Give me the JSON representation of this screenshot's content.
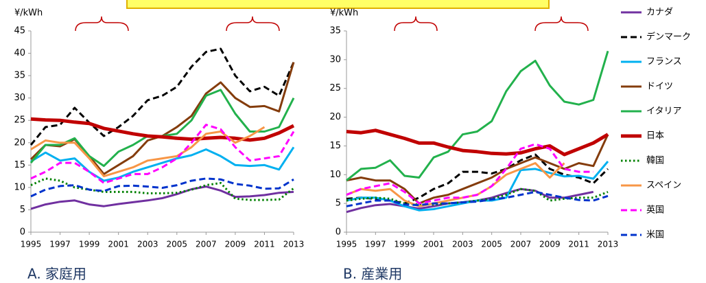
{
  "chart_data": [
    {
      "type": "line",
      "y_label": "¥/kWh",
      "caption": "A. 家庭用",
      "x": [
        1995,
        1996,
        1997,
        1998,
        1999,
        2000,
        2001,
        2002,
        2003,
        2004,
        2005,
        2006,
        2007,
        2008,
        2009,
        2010,
        2011,
        2012,
        2013
      ],
      "xlim": [
        1995,
        2013
      ],
      "xticks": [
        1995,
        1997,
        1999,
        2001,
        2003,
        2005,
        2007,
        2009,
        2011,
        2013
      ],
      "ylim": [
        0,
        45
      ],
      "yticks": [
        0,
        5,
        10,
        15,
        20,
        25,
        30,
        35,
        40,
        45
      ],
      "series": [
        {
          "name": "カナダ",
          "color": "#7030a0",
          "dash": "solid",
          "line_width": 3,
          "values": [
            5.2,
            6.2,
            6.8,
            7.1,
            6.2,
            5.8,
            6.3,
            6.7,
            7.1,
            7.6,
            8.5,
            9.6,
            10.2,
            9.3,
            7.9,
            8.0,
            8.3,
            8.8,
            9.0
          ]
        },
        {
          "name": "デンマーク",
          "color": "#000000",
          "dash": "dashed",
          "line_width": 3,
          "values": [
            19.5,
            23.5,
            24,
            27.8,
            24.5,
            21.5,
            23.5,
            26,
            29.5,
            30.5,
            32.5,
            37,
            40.3,
            41,
            35,
            31.5,
            32.5,
            30.5,
            38
          ]
        },
        {
          "name": "フランス",
          "color": "#00b0f0",
          "dash": "solid",
          "line_width": 3,
          "values": [
            15.8,
            17.8,
            16,
            16.5,
            13.5,
            11.5,
            12.2,
            13.5,
            14.5,
            15.5,
            16.5,
            17.2,
            18.5,
            17,
            15,
            14.8,
            15,
            14,
            19
          ]
        },
        {
          "name": "ドイツ",
          "color": "#843c0c",
          "dash": "solid",
          "line_width": 3,
          "values": [
            16.3,
            19.5,
            19.2,
            20.8,
            17,
            13,
            15,
            17,
            20.5,
            21.5,
            23.5,
            26,
            31,
            33.5,
            30,
            28,
            28.2,
            27,
            38
          ]
        },
        {
          "name": "イタリア",
          "color": "#22b14c",
          "dash": "solid",
          "line_width": 3,
          "values": [
            15.5,
            19.5,
            19.5,
            21,
            17,
            14.8,
            18,
            19.5,
            21.5,
            21.5,
            22,
            25,
            30.5,
            31.8,
            26.5,
            22.5,
            22.5,
            23.5,
            30
          ]
        },
        {
          "name": "日本",
          "color": "#c00000",
          "dash": "solid",
          "line_width": 5,
          "values": [
            25.3,
            25.1,
            25,
            24.6,
            24.3,
            23.2,
            22.6,
            22,
            21.5,
            21.3,
            21,
            20.8,
            21,
            21.2,
            21,
            20.6,
            21,
            22.2,
            23.8
          ]
        },
        {
          "name": "韓国",
          "color": "#008000",
          "dash": "dotted",
          "line_width": 3,
          "values": [
            10.5,
            12,
            11.5,
            10,
            9.5,
            9,
            9,
            9,
            8.7,
            8.7,
            8.8,
            9.5,
            10.5,
            11,
            7.5,
            7.2,
            7.2,
            7.3,
            9.8
          ]
        },
        {
          "name": "スペイン",
          "color": "#f79646",
          "dash": "solid",
          "line_width": 3,
          "values": [
            18.5,
            20.5,
            20,
            20,
            16.5,
            12.5,
            13.5,
            14.5,
            16,
            16.5,
            17,
            19,
            22,
            22.5,
            20,
            21.5,
            23.5,
            null,
            null
          ]
        },
        {
          "name": "英国",
          "color": "#ff00ff",
          "dash": "dashed",
          "line_width": 3,
          "values": [
            12,
            13.5,
            15.5,
            15.5,
            13.5,
            11,
            12,
            13,
            13,
            14.5,
            16.5,
            20,
            24,
            23,
            19,
            16,
            16.5,
            17,
            22.5
          ]
        },
        {
          "name": "米国",
          "color": "#0033cc",
          "dash": "dashed",
          "line_width": 3,
          "values": [
            8,
            9.5,
            10.3,
            10.5,
            9.5,
            9.2,
            10.3,
            10.4,
            10.2,
            9.9,
            10.5,
            11.5,
            12,
            11.8,
            10.8,
            10.4,
            9.7,
            9.8,
            11.8
          ]
        }
      ]
    },
    {
      "type": "line",
      "y_label": "¥/kWh",
      "caption": "B. 産業用",
      "legend": "right",
      "x": [
        1995,
        1996,
        1997,
        1998,
        1999,
        2000,
        2001,
        2002,
        2003,
        2004,
        2005,
        2006,
        2007,
        2008,
        2009,
        2010,
        2011,
        2012,
        2013
      ],
      "xlim": [
        1995,
        2013
      ],
      "xticks": [
        1995,
        1997,
        1999,
        2001,
        2003,
        2005,
        2007,
        2009,
        2011,
        2013
      ],
      "ylim": [
        0,
        35
      ],
      "yticks": [
        0,
        5,
        10,
        15,
        20,
        25,
        30,
        35
      ],
      "series": [
        {
          "name": "カナダ",
          "color": "#7030a0",
          "dash": "solid",
          "line_width": 3,
          "values": [
            3.5,
            4.2,
            4.7,
            4.9,
            4.5,
            4.1,
            4.5,
            5,
            5.2,
            5.5,
            6,
            6.8,
            7.5,
            7.2,
            6,
            6,
            6.5,
            7,
            null
          ]
        },
        {
          "name": "デンマーク",
          "color": "#000000",
          "dash": "dashed",
          "line_width": 3,
          "values": [
            5.8,
            6,
            5.8,
            5.5,
            5,
            6,
            7.5,
            8.5,
            10.5,
            10.5,
            10.2,
            11,
            12.5,
            13.5,
            11,
            10,
            9.5,
            8.5,
            11
          ]
        },
        {
          "name": "フランス",
          "color": "#00b0f0",
          "dash": "solid",
          "line_width": 3,
          "values": [
            5.5,
            6,
            6,
            5.5,
            4.5,
            3.8,
            4,
            4.5,
            5,
            5.5,
            5.5,
            6,
            10.8,
            11,
            10.3,
            9.7,
            9.8,
            9.3,
            12.3
          ]
        },
        {
          "name": "ドイツ",
          "color": "#843c0c",
          "dash": "solid",
          "line_width": 3,
          "values": [
            9,
            9.5,
            9,
            9,
            7.5,
            5,
            6,
            6.5,
            7.5,
            8.5,
            9.5,
            11,
            12,
            13,
            12,
            11,
            12,
            11.5,
            17
          ]
        },
        {
          "name": "イタリア",
          "color": "#22b14c",
          "dash": "solid",
          "line_width": 3,
          "values": [
            9,
            11,
            11.2,
            12.5,
            9.8,
            9.5,
            13,
            14,
            17,
            17.5,
            19.3,
            24.5,
            28,
            29.8,
            25.5,
            22.7,
            22.2,
            23,
            31.5
          ]
        },
        {
          "name": "日本",
          "color": "#c00000",
          "dash": "solid",
          "line_width": 5,
          "values": [
            17.5,
            17.3,
            17.7,
            17,
            16.3,
            15.5,
            15.5,
            14.8,
            14.2,
            14,
            13.7,
            13.6,
            13.8,
            14.5,
            15,
            13.5,
            14.5,
            15.5,
            17
          ]
        },
        {
          "name": "韓国",
          "color": "#008000",
          "dash": "dotted",
          "line_width": 3,
          "values": [
            5.5,
            5.8,
            6,
            5.8,
            5,
            4.8,
            4.8,
            5,
            5.2,
            5.5,
            5.8,
            6.5,
            7.5,
            7.2,
            5.5,
            5.8,
            6,
            6,
            7
          ]
        },
        {
          "name": "スペイン",
          "color": "#f79646",
          "dash": "solid",
          "line_width": 3,
          "values": [
            6.5,
            7.5,
            7.2,
            7.5,
            5.5,
            4.5,
            5,
            5.5,
            6,
            6.5,
            8,
            10,
            11,
            12,
            9.5,
            12,
            null,
            null,
            null
          ]
        },
        {
          "name": "英国",
          "color": "#ff00ff",
          "dash": "dashed",
          "line_width": 3,
          "values": [
            6.5,
            7.5,
            8,
            8.5,
            7,
            5,
            5.5,
            6,
            6,
            6.5,
            8,
            11,
            14.5,
            15.3,
            14.5,
            11,
            10.5,
            10.5,
            null
          ]
        },
        {
          "name": "米国",
          "color": "#0033cc",
          "dash": "dashed",
          "line_width": 3,
          "values": [
            4.5,
            5,
            5.5,
            5.5,
            4.8,
            4.7,
            5,
            5,
            5.2,
            5.3,
            5.7,
            6,
            6.5,
            7,
            6.5,
            6,
            5.6,
            5.5,
            6.3
          ]
        }
      ]
    }
  ]
}
